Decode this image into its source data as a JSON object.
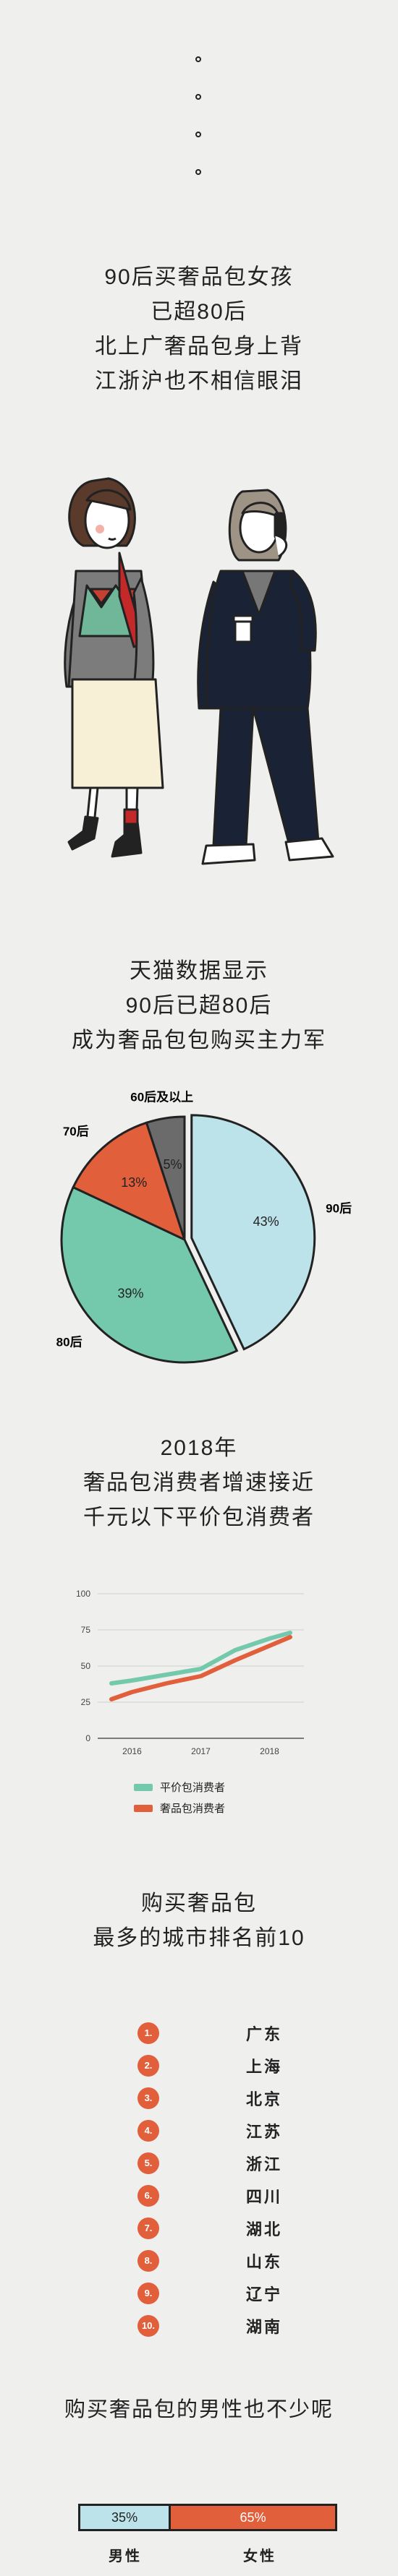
{
  "intro": {
    "lines": [
      "90后买奢品包女孩",
      "已超80后",
      "北上广奢品包身上背",
      "江浙沪也不相信眼泪"
    ]
  },
  "section1": {
    "lines": [
      "天猫数据显示",
      "90后已超80后",
      "成为奢品包包购买主力军"
    ]
  },
  "pie": {
    "chart_data": {
      "type": "pie",
      "categories": [
        "90后",
        "80后",
        "70后",
        "60后及以上"
      ],
      "values": [
        43,
        39,
        13,
        5
      ],
      "value_labels": [
        "43%",
        "39%",
        "13%",
        "5%"
      ],
      "colors": [
        "#bde3ea",
        "#74c9ac",
        "#e25f3c",
        "#6b6b6b"
      ]
    }
  },
  "section2": {
    "lines": [
      "2018年",
      "奢品包消费者增速接近",
      "千元以下平价包消费者"
    ]
  },
  "line_chart": {
    "chart_data": {
      "type": "line",
      "x": [
        "2016",
        "2017",
        "2018"
      ],
      "yticks": [
        "100",
        "75",
        "50",
        "25",
        "0"
      ],
      "ylim": [
        0,
        100
      ],
      "series": [
        {
          "name": "平价包消费者",
          "color": "#74c9ac",
          "points": [
            [
              2015.7,
              38
            ],
            [
              2016,
              40
            ],
            [
              2016.5,
              44
            ],
            [
              2017,
              48
            ],
            [
              2017.5,
              61
            ],
            [
              2018,
              69
            ],
            [
              2018.3,
              73
            ]
          ]
        },
        {
          "name": "奢品包消费者",
          "color": "#e25f3c",
          "points": [
            [
              2015.7,
              27
            ],
            [
              2016,
              32
            ],
            [
              2016.5,
              38
            ],
            [
              2017,
              43
            ],
            [
              2017.5,
              54
            ],
            [
              2018,
              64
            ],
            [
              2018.3,
              70
            ]
          ]
        }
      ]
    }
  },
  "section3": {
    "lines": [
      "购买奢品包",
      "最多的城市排名前10"
    ]
  },
  "ranking": [
    {
      "num": "1.",
      "city": "广东"
    },
    {
      "num": "2.",
      "city": "上海"
    },
    {
      "num": "3.",
      "city": "北京"
    },
    {
      "num": "4.",
      "city": "江苏"
    },
    {
      "num": "5.",
      "city": "浙江"
    },
    {
      "num": "6.",
      "city": "四川"
    },
    {
      "num": "7.",
      "city": "湖北"
    },
    {
      "num": "8.",
      "city": "山东"
    },
    {
      "num": "9.",
      "city": "辽宁"
    },
    {
      "num": "10.",
      "city": "湖南"
    }
  ],
  "gender": {
    "title": "购买奢品包的男性也不少呢",
    "male_pct": 35,
    "female_pct": 65,
    "male_label_pct": "35%",
    "female_label_pct": "65%",
    "male_label": "男性",
    "female_label": "女性"
  }
}
